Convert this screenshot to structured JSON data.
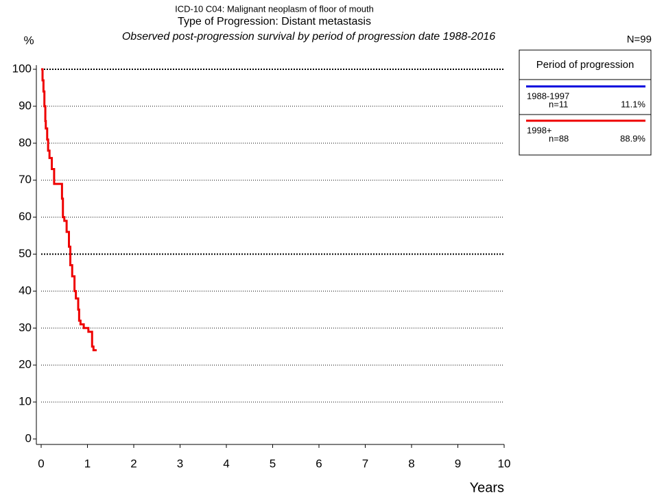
{
  "chart_data": {
    "type": "step",
    "title": "ICD-10 C04: Malignant neoplasm of floor of mouth",
    "subtitle": "Type of Progression: Distant metastasis",
    "caption": "Observed post-progression survival by period of progression date 1988-2016",
    "y_label": "%",
    "x_label": "Years",
    "total": "N=99",
    "legend_title": "Period of progression",
    "xlim": [
      0,
      10
    ],
    "xticks": [
      0,
      1,
      2,
      3,
      4,
      5,
      6,
      7,
      8,
      9,
      10
    ],
    "ylim": [
      0,
      100
    ],
    "yticks": [
      0,
      10,
      20,
      30,
      40,
      50,
      60,
      70,
      80,
      90,
      100
    ],
    "grid": true,
    "series": [
      {
        "name": "1988-1997",
        "n": "n=11",
        "share": "11.1%",
        "color": "#0000dd",
        "x": [],
        "values": []
      },
      {
        "name": "1998+",
        "n": "n=88",
        "share": "88.9%",
        "color": "#ee0000",
        "x": [
          0,
          0.03,
          0.05,
          0.07,
          0.09,
          0.1,
          0.13,
          0.15,
          0.18,
          0.23,
          0.28,
          0.3,
          0.45,
          0.47,
          0.5,
          0.55,
          0.6,
          0.63,
          0.67,
          0.72,
          0.75,
          0.8,
          0.82,
          0.85,
          0.92,
          1.02,
          1.1,
          1.13,
          1.18,
          1.2
        ],
        "values": [
          100,
          97,
          94,
          90,
          86,
          84,
          81,
          78,
          76,
          73,
          69,
          69,
          65,
          60,
          59,
          56,
          52,
          47,
          44,
          40,
          38,
          35,
          32,
          31,
          30,
          29,
          25,
          24,
          24,
          24
        ]
      }
    ]
  }
}
